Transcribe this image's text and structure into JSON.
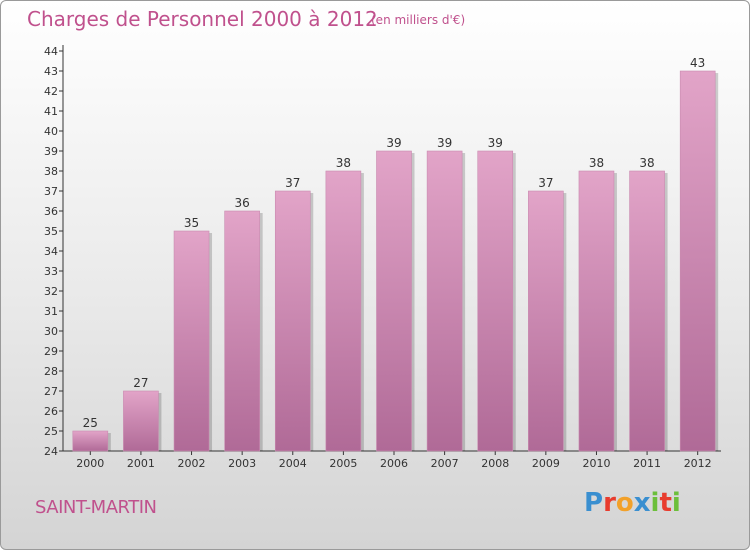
{
  "header": {
    "title": "Charges de Personnel 2000 à 2012",
    "subtitle": "(en milliers d'€)"
  },
  "footer": {
    "commune": "SAINT-MARTIN",
    "logo_letters": [
      "P",
      "r",
      "o",
      "x",
      "i",
      "t",
      "i"
    ],
    "logo_colors": [
      "#3a8fd0",
      "#e83c2e",
      "#f2a12a",
      "#3a8fd0",
      "#6cbf3a",
      "#e83c2e",
      "#6cbf3a"
    ]
  },
  "colors": {
    "accent": "#c0518d",
    "bar_top": "#e2a4c8",
    "bar_bottom": "#b06a97"
  },
  "chart_data": {
    "type": "bar",
    "categories": [
      "2000",
      "2001",
      "2002",
      "2003",
      "2004",
      "2005",
      "2006",
      "2007",
      "2008",
      "2009",
      "2010",
      "2011",
      "2012"
    ],
    "values": [
      25,
      27,
      35,
      36,
      37,
      38,
      39,
      39,
      39,
      37,
      38,
      38,
      43
    ],
    "ylim": [
      24,
      44
    ],
    "yticks": [
      24,
      25,
      26,
      27,
      28,
      29,
      30,
      31,
      32,
      33,
      34,
      35,
      36,
      37,
      38,
      39,
      40,
      41,
      42,
      43,
      44
    ],
    "data_labels": true,
    "grid": false
  }
}
